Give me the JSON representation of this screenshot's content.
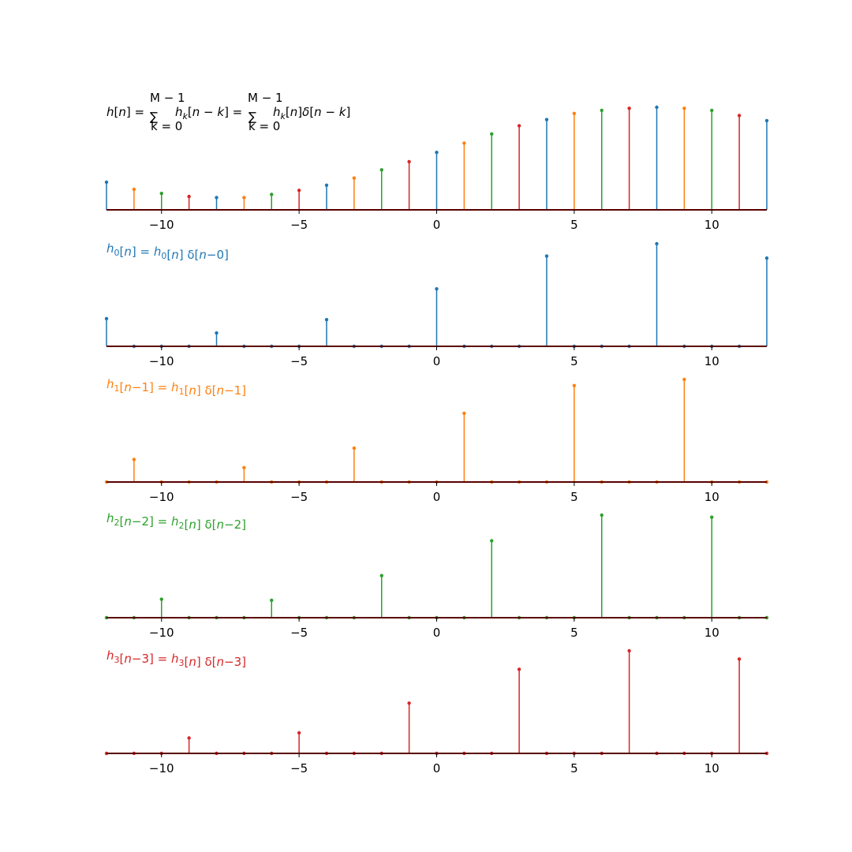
{
  "colors": {
    "blue": "#1f77b4",
    "orange": "#ff7f0e",
    "green": "#2ca02c",
    "red": "#d62728",
    "black": "#000000"
  },
  "chart_data": [
    {
      "type": "stem",
      "title": "h[n] = ∑_{k=0}^{M−1} h_k[n−k] = ∑_{k=0}^{M−1} h_k[n] δ[n−k]",
      "title_color": "black",
      "x": [
        -12,
        -11,
        -10,
        -9,
        -8,
        -7,
        -6,
        -5,
        -4,
        -3,
        -2,
        -1,
        0,
        1,
        2,
        3,
        4,
        5,
        6,
        7,
        8,
        9,
        10,
        11,
        12
      ],
      "values": [
        0.27,
        0.2,
        0.16,
        0.13,
        0.12,
        0.12,
        0.15,
        0.19,
        0.24,
        0.31,
        0.39,
        0.47,
        0.56,
        0.65,
        0.74,
        0.82,
        0.88,
        0.94,
        0.97,
        0.99,
        1.0,
        0.99,
        0.97,
        0.92,
        0.87
      ],
      "point_colors": [
        "blue",
        "orange",
        "green",
        "red",
        "blue",
        "orange",
        "green",
        "red",
        "blue",
        "orange",
        "green",
        "red",
        "blue",
        "orange",
        "green",
        "red",
        "blue",
        "orange",
        "green",
        "red",
        "blue",
        "orange",
        "green",
        "red",
        "blue"
      ],
      "xlim": [
        -12,
        12
      ],
      "xticks": [
        -10,
        -5,
        0,
        5,
        10
      ],
      "xtick_labels": [
        "−10",
        "−5",
        "0",
        "5",
        "10"
      ],
      "grid": false
    },
    {
      "type": "stem",
      "title": "h_0[n] = h_0[n] δ[n−0]",
      "title_color": "blue",
      "x": [
        -12,
        -11,
        -10,
        -9,
        -8,
        -7,
        -6,
        -5,
        -4,
        -3,
        -2,
        -1,
        0,
        1,
        2,
        3,
        4,
        5,
        6,
        7,
        8,
        9,
        10,
        11,
        12
      ],
      "values": [
        0.27,
        0,
        0,
        0,
        0.13,
        0,
        0,
        0,
        0.26,
        0,
        0,
        0,
        0.56,
        0,
        0,
        0,
        0.88,
        0,
        0,
        0,
        1.0,
        0,
        0,
        0,
        0.86
      ],
      "color": "blue",
      "xlim": [
        -12,
        12
      ],
      "xticks": [
        -10,
        -5,
        0,
        5,
        10
      ],
      "xtick_labels": [
        "−10",
        "−5",
        "0",
        "5",
        "10"
      ],
      "grid": false
    },
    {
      "type": "stem",
      "title": "h_1[n−1] = h_1[n] δ[n−1]",
      "title_color": "orange",
      "x": [
        -12,
        -11,
        -10,
        -9,
        -8,
        -7,
        -6,
        -5,
        -4,
        -3,
        -2,
        -1,
        0,
        1,
        2,
        3,
        4,
        5,
        6,
        7,
        8,
        9,
        10,
        11,
        12
      ],
      "values": [
        0,
        0.22,
        0,
        0,
        0,
        0.14,
        0,
        0,
        0,
        0.33,
        0,
        0,
        0,
        0.67,
        0,
        0,
        0,
        0.94,
        0,
        0,
        0,
        1.0,
        0,
        0,
        0
      ],
      "color": "orange",
      "xlim": [
        -12,
        12
      ],
      "xticks": [
        -10,
        -5,
        0,
        5,
        10
      ],
      "xtick_labels": [
        "−10",
        "−5",
        "0",
        "5",
        "10"
      ],
      "grid": false
    },
    {
      "type": "stem",
      "title": "h_2[n−2] = h_2[n] δ[n−2]",
      "title_color": "green",
      "x": [
        -12,
        -11,
        -10,
        -9,
        -8,
        -7,
        -6,
        -5,
        -4,
        -3,
        -2,
        -1,
        0,
        1,
        2,
        3,
        4,
        5,
        6,
        7,
        8,
        9,
        10,
        11,
        12
      ],
      "values": [
        0,
        0,
        0.18,
        0,
        0,
        0,
        0.17,
        0,
        0,
        0,
        0.41,
        0,
        0,
        0,
        0.75,
        0,
        0,
        0,
        1.0,
        0,
        0,
        0,
        0.98,
        0,
        0
      ],
      "color": "green",
      "xlim": [
        -12,
        12
      ],
      "xticks": [
        -10,
        -5,
        0,
        5,
        10
      ],
      "xtick_labels": [
        "−10",
        "−5",
        "0",
        "5",
        "10"
      ],
      "grid": false
    },
    {
      "type": "stem",
      "title": "h_3[n−3] = h_3[n] δ[n−3]",
      "title_color": "red",
      "x": [
        -12,
        -11,
        -10,
        -9,
        -8,
        -7,
        -6,
        -5,
        -4,
        -3,
        -2,
        -1,
        0,
        1,
        2,
        3,
        4,
        5,
        6,
        7,
        8,
        9,
        10,
        11,
        12
      ],
      "values": [
        0,
        0,
        0,
        0.15,
        0,
        0,
        0,
        0.2,
        0,
        0,
        0,
        0.49,
        0,
        0,
        0,
        0.82,
        0,
        0,
        0,
        1.0,
        0,
        0,
        0,
        0.92,
        0
      ],
      "color": "red",
      "xlim": [
        -12,
        12
      ],
      "xticks": [
        -10,
        -5,
        0,
        5,
        10
      ],
      "xtick_labels": [
        "−10",
        "−5",
        "0",
        "5",
        "10"
      ],
      "grid": false
    }
  ]
}
